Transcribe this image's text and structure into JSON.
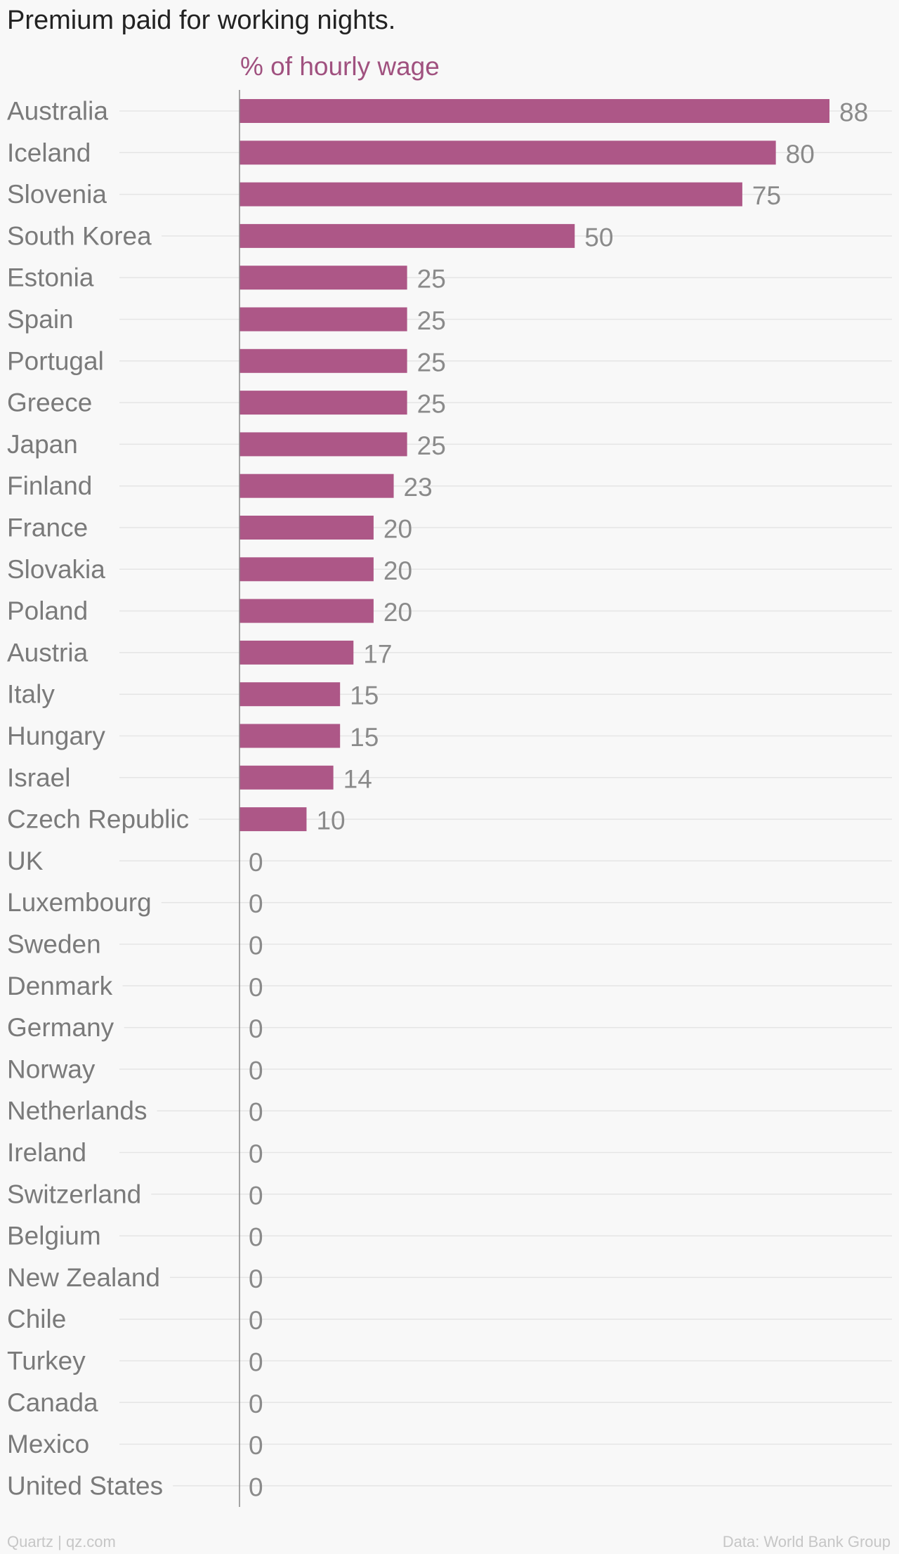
{
  "chart_data": {
    "type": "bar",
    "orientation": "horizontal",
    "title": "Premium paid for working nights.",
    "subtitle": "% of hourly wage",
    "categories": [
      "Australia",
      "Iceland",
      "Slovenia",
      "South Korea",
      "Estonia",
      "Spain",
      "Portugal",
      "Greece",
      "Japan",
      "Finland",
      "France",
      "Slovakia",
      "Poland",
      "Austria",
      "Italy",
      "Hungary",
      "Israel",
      "Czech Republic",
      "UK",
      "Luxembourg",
      "Sweden",
      "Denmark",
      "Germany",
      "Norway",
      "Netherlands",
      "Ireland",
      "Switzerland",
      "Belgium",
      "New Zealand",
      "Chile",
      "Turkey",
      "Canada",
      "Mexico",
      "United States"
    ],
    "values": [
      88,
      80,
      75,
      50,
      25,
      25,
      25,
      25,
      25,
      23,
      20,
      20,
      20,
      17,
      15,
      15,
      14,
      10,
      0,
      0,
      0,
      0,
      0,
      0,
      0,
      0,
      0,
      0,
      0,
      0,
      0,
      0,
      0,
      0
    ],
    "xlim": [
      0,
      88
    ],
    "grid": true,
    "colors": {
      "bar": "#ad5787",
      "subtitle": "#a0517f",
      "category_label": "#7a7a7a",
      "value_label": "#8a8a8a",
      "gridline": "#e5e5e5",
      "axis": "#888888"
    }
  },
  "footer": {
    "credit": "Quartz | qz.com",
    "source": "Data: World Bank Group"
  }
}
